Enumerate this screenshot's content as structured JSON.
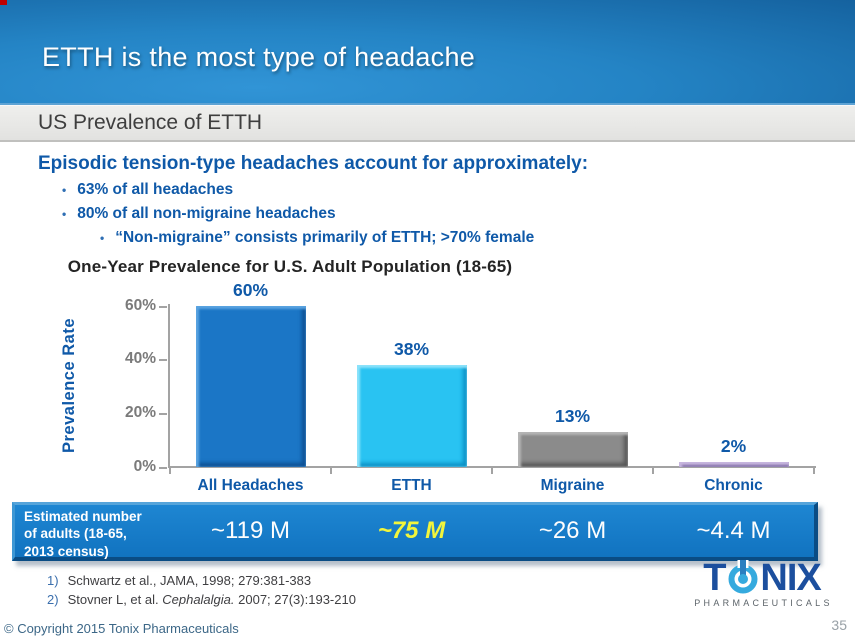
{
  "header": {
    "title": "ETTH is the most type of headache"
  },
  "subheader": {
    "title": "US Prevalence of ETTH"
  },
  "body": {
    "heading": "Episodic tension-type headaches account for approximately:",
    "bullets": [
      {
        "level": 1,
        "text": "63% of all headaches"
      },
      {
        "level": 1,
        "text": "80% of all non-migraine headaches"
      },
      {
        "level": 2,
        "text": "“Non-migraine” consists primarily of ETTH; >70% female"
      }
    ]
  },
  "chart_data": {
    "type": "bar",
    "title": "One-Year Prevalence for U.S. Adult Population (18-65)",
    "xlabel": "",
    "ylabel": "Prevalence Rate",
    "categories": [
      "All Headaches",
      "ETTH",
      "Migraine",
      "Chronic"
    ],
    "values": [
      60,
      38,
      13,
      2
    ],
    "value_labels": [
      "60%",
      "38%",
      "13%",
      "2%"
    ],
    "ylim": [
      0,
      60
    ],
    "yticks": [
      {
        "label": "60%",
        "value": 60
      },
      {
        "label": "40%",
        "value": 40
      },
      {
        "label": "20%",
        "value": 20
      },
      {
        "label": "0%",
        "value": 0
      }
    ],
    "grid": false,
    "legend": false,
    "bar_styles": [
      {
        "fill": "#1b76c6",
        "light": "#5aa3e0",
        "dark": "#0d4f92"
      },
      {
        "fill": "#29c3f2",
        "light": "#8ce2fa",
        "dark": "#0b8fc4"
      },
      {
        "fill": "#8b8b8b",
        "light": "#b5b5b5",
        "dark": "#565656"
      },
      {
        "fill": "#a18cc6",
        "light": "#c7b6de",
        "dark": "#73619b"
      }
    ]
  },
  "band": {
    "label": "Estimated number\nof adults (18-65,\n2013 census)",
    "highlight_color": "#f2f53c",
    "values": [
      {
        "text": "~119 M",
        "highlight": false
      },
      {
        "text": "~75 M",
        "highlight": true
      },
      {
        "text": "~26 M",
        "highlight": false
      },
      {
        "text": "~4.4 M",
        "highlight": false
      }
    ]
  },
  "references": [
    {
      "num": "1)",
      "pre": "Schwartz et al., JAMA, 1998; 279:381-383",
      "italic": "",
      "post": ""
    },
    {
      "num": "2)",
      "pre": "Stovner L, et al. ",
      "italic": "Cephalalgia.",
      "post": " 2007; 27(3):193-210"
    }
  ],
  "logo": {
    "text_t": "T",
    "text_nix": "NIX",
    "subtext": "PHARMACEUTICALS",
    "brand_blue": "#1c4f9e",
    "icon_blue": "#35aade"
  },
  "footer": {
    "copyright": "© Copyright 2015 Tonix Pharmaceuticals",
    "page_number": "35"
  }
}
